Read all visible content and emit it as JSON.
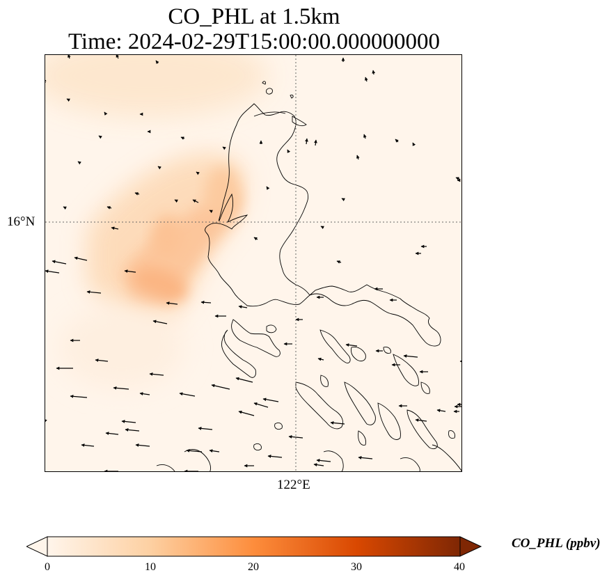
{
  "title": {
    "line1": "CO_PHL at 1.5km",
    "line2": "Time: 2024-02-29T15:00:00.000000000"
  },
  "axes": {
    "lat_tick": "16°N",
    "lon_tick": "122°E",
    "gridlines": "dotted"
  },
  "colorbar": {
    "label": "CO_PHL (ppbv)",
    "colormap": "Oranges",
    "colors": [
      "#fff5eb",
      "#fdd0a2",
      "#fd8d3c",
      "#d94801",
      "#7f2704"
    ],
    "extend": "both",
    "ticks": [
      "0",
      "10",
      "20",
      "30",
      "40"
    ],
    "range": [
      0,
      40
    ]
  },
  "plume": {
    "description_levels_ppbv": [
      4,
      8,
      12,
      15
    ]
  },
  "colors": {
    "coastline": "#000000",
    "arrow": "#000000",
    "background": "#fff5eb"
  }
}
